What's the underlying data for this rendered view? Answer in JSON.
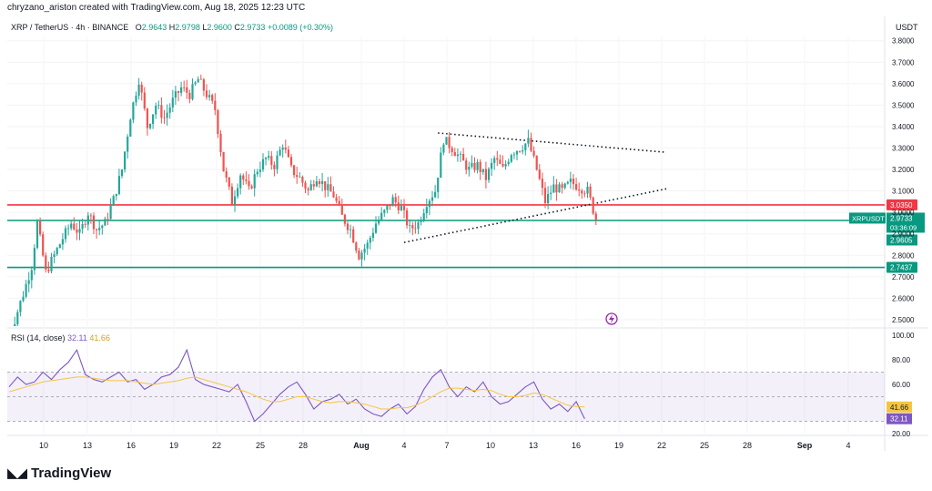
{
  "header": {
    "credit": "chryzano_ariston created with TradingView.com, Aug 18, 2025 12:23 UTC",
    "symbol": "XRP / TetherUS · 4h · BINANCE",
    "ohlc": {
      "o_label": "O",
      "o": "2.9643",
      "h_label": "H",
      "h": "2.9798",
      "l_label": "L",
      "l": "2.9600",
      "c_label": "C",
      "c": "2.9733",
      "change": "+0.0089 (+0.30%)"
    },
    "currency": "USDT"
  },
  "brand": {
    "name": "TradingView",
    "logo_icon": "tradingview-logo-icon"
  },
  "colors": {
    "up": "#26a69a",
    "down": "#ef5350",
    "rsi": "#7e57c2",
    "rsi_ma": "#f5c542",
    "resistance": "#f23645",
    "support": "#089981"
  },
  "chart_data": [
    {
      "type": "candlestick",
      "title": "",
      "x_labels": [
        "10",
        "13",
        "16",
        "19",
        "22",
        "25",
        "28",
        "Aug",
        "4",
        "7",
        "10",
        "13",
        "16",
        "19",
        "22",
        "25",
        "28",
        "Sep",
        "4"
      ],
      "y_ticks": [
        "2.5000",
        "2.6000",
        "2.7000",
        "2.8000",
        "2.9000",
        "3.0000",
        "3.1000",
        "3.2000",
        "3.3000",
        "3.4000",
        "3.5000",
        "3.6000",
        "3.7000",
        "3.8000"
      ],
      "ylim": [
        2.47,
        3.82
      ],
      "series_points": [
        [
          0,
          2.38
        ],
        [
          3,
          2.5
        ],
        [
          6,
          2.62
        ],
        [
          9,
          2.75
        ],
        [
          11,
          2.95
        ],
        [
          14,
          2.72
        ],
        [
          17,
          2.8
        ],
        [
          20,
          2.88
        ],
        [
          23,
          2.95
        ],
        [
          26,
          2.9
        ],
        [
          29,
          3.0
        ],
        [
          32,
          2.92
        ],
        [
          35,
          2.95
        ],
        [
          38,
          3.06
        ],
        [
          41,
          3.2
        ],
        [
          44,
          3.45
        ],
        [
          47,
          3.62
        ],
        [
          50,
          3.4
        ],
        [
          53,
          3.5
        ],
        [
          56,
          3.44
        ],
        [
          59,
          3.52
        ],
        [
          62,
          3.58
        ],
        [
          65,
          3.55
        ],
        [
          68,
          3.62
        ],
        [
          71,
          3.55
        ],
        [
          74,
          3.48
        ],
        [
          77,
          3.2
        ],
        [
          80,
          3.05
        ],
        [
          83,
          3.18
        ],
        [
          86,
          3.1
        ],
        [
          89,
          3.2
        ],
        [
          92,
          3.25
        ],
        [
          95,
          3.22
        ],
        [
          98,
          3.32
        ],
        [
          101,
          3.2
        ],
        [
          104,
          3.16
        ],
        [
          107,
          3.1
        ],
        [
          110,
          3.17
        ],
        [
          113,
          3.12
        ],
        [
          116,
          3.08
        ],
        [
          119,
          2.98
        ],
        [
          122,
          2.92
        ],
        [
          125,
          2.8
        ],
        [
          128,
          2.85
        ],
        [
          131,
          2.95
        ],
        [
          134,
          3.0
        ],
        [
          137,
          3.06
        ],
        [
          140,
          3.02
        ],
        [
          143,
          2.92
        ],
        [
          146,
          2.95
        ],
        [
          149,
          3.05
        ],
        [
          152,
          3.1
        ],
        [
          155,
          3.34
        ],
        [
          158,
          3.3
        ],
        [
          161,
          3.25
        ],
        [
          164,
          3.2
        ],
        [
          167,
          3.22
        ],
        [
          170,
          3.16
        ],
        [
          173,
          3.25
        ],
        [
          176,
          3.2
        ],
        [
          179,
          3.28
        ],
        [
          182,
          3.3
        ],
        [
          185,
          3.33
        ],
        [
          188,
          3.2
        ],
        [
          191,
          3.05
        ],
        [
          194,
          3.12
        ],
        [
          197,
          3.1
        ],
        [
          200,
          3.14
        ],
        [
          203,
          3.12
        ],
        [
          206,
          3.1
        ],
        [
          209,
          2.97
        ]
      ],
      "price_levels": [
        {
          "label": "3.0350",
          "value": 3.035,
          "color": "#f23645"
        },
        {
          "label": "",
          "value": 2.9625,
          "color": "#089981"
        },
        {
          "label": "2.7437",
          "value": 2.7437,
          "color": "#089981"
        }
      ],
      "last_price": {
        "symbol": "XRPUSDT",
        "value": "2.9733",
        "countdown": "03:36:09",
        "sub": "2.9605"
      },
      "trendlines": [
        {
          "from": [
            152,
            3.37
          ],
          "to": [
            233,
            3.28
          ]
        },
        {
          "from": [
            140,
            2.86
          ],
          "to": [
            233,
            3.11
          ]
        }
      ]
    },
    {
      "type": "line",
      "title": "RSI (14, close)",
      "values_label": [
        "32.11",
        "41.66"
      ],
      "ylim": [
        20,
        100
      ],
      "y_ticks": [
        "20.00",
        "60.00",
        "80.00",
        "100.00"
      ],
      "band": [
        30,
        70
      ],
      "series": [
        {
          "name": "RSI",
          "values": [
            58,
            66,
            60,
            62,
            70,
            64,
            72,
            78,
            88,
            68,
            64,
            62,
            66,
            70,
            62,
            64,
            56,
            60,
            66,
            68,
            74,
            88,
            64,
            60,
            58,
            56,
            54,
            60,
            46,
            30,
            36,
            44,
            52,
            58,
            62,
            52,
            40,
            46,
            48,
            52,
            44,
            48,
            40,
            36,
            34,
            40,
            44,
            36,
            42,
            56,
            66,
            72,
            58,
            50,
            58,
            54,
            62,
            50,
            44,
            46,
            52,
            58,
            62,
            48,
            40,
            44,
            38,
            46,
            32
          ]
        },
        {
          "name": "MA",
          "values": [
            54,
            56,
            58,
            60,
            62,
            63,
            64,
            65,
            66,
            66,
            65,
            64,
            63,
            63,
            63,
            62,
            61,
            60,
            61,
            62,
            63,
            65,
            66,
            64,
            62,
            60,
            58,
            56,
            54,
            51,
            48,
            46,
            46,
            48,
            50,
            50,
            48,
            46,
            45,
            46,
            46,
            45,
            44,
            42,
            40,
            40,
            41,
            41,
            43,
            46,
            50,
            54,
            57,
            57,
            56,
            55,
            56,
            55,
            52,
            50,
            50,
            51,
            53,
            52,
            49,
            46,
            43,
            42,
            41.66
          ]
        }
      ]
    }
  ]
}
